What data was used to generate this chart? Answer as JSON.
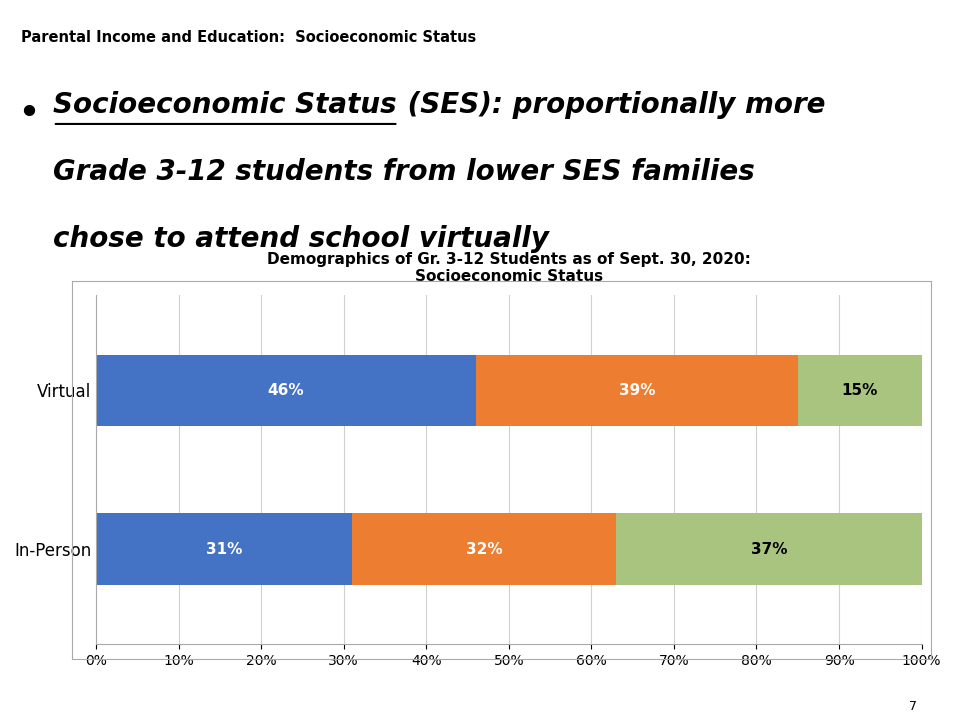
{
  "title_line1": "Demographics of Gr. 3-12 Students as of Sept. 30, 2020:",
  "title_line2": "Socioeconomic Status",
  "categories": [
    "In-Person",
    "Virtual"
  ],
  "low": [
    31,
    46
  ],
  "average": [
    32,
    39
  ],
  "high": [
    37,
    15
  ],
  "low_color": "#4472c4",
  "average_color": "#ed7d31",
  "high_color": "#a9c47f",
  "header_text": "Parental Income and Education:  Socioeconomic Status",
  "header_bg": "#9dc183",
  "slide_bg": "#ffffff",
  "chart_bg": "#ffffff",
  "label_fontsize": 11,
  "title_fontsize": 11,
  "tick_fontsize": 10,
  "legend_fontsize": 10,
  "bar_height": 0.45,
  "footer_green": "#7ab648",
  "footer_orange": "#ed7d31",
  "page_number": "7"
}
